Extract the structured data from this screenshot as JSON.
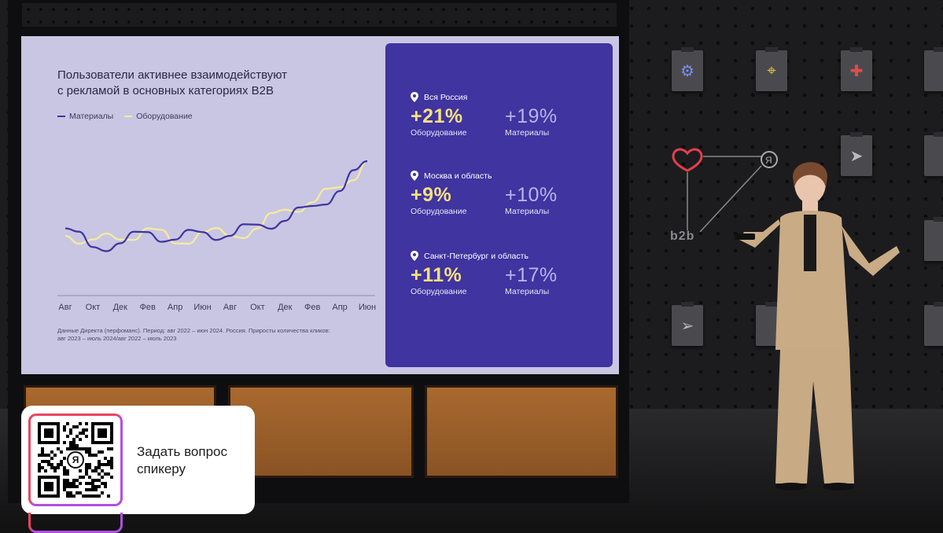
{
  "slide": {
    "title_line1": "Пользователи активнее взаимодействуют",
    "title_line2": "с рекламой в основных категориях В2В",
    "legend": [
      {
        "label": "Материалы",
        "color": "#3f34a0"
      },
      {
        "label": "Оборудование",
        "color": "#f6ec9a"
      }
    ],
    "footnote_line1": "Данные Директа (перфоманс). Период: авг 2022 – июн 2024. Россия. Приросты количества кликов:",
    "footnote_line2": "авг 2023 – июль 2024/авг 2022 – июль 2023"
  },
  "chart_data": {
    "type": "line",
    "x": [
      "Авг",
      "Окт",
      "Дек",
      "Фев",
      "Апр",
      "Июн",
      "Авг",
      "Окт",
      "Дек",
      "Фев",
      "Апр",
      "Июн"
    ],
    "series": [
      {
        "name": "Материалы",
        "color": "#3f34a0",
        "values": [
          48,
          43,
          44,
          47,
          45,
          47,
          46,
          49,
          50,
          54,
          58,
          66
        ]
      },
      {
        "name": "Оборудование",
        "color": "#f6ec9a",
        "values": [
          46,
          45,
          45,
          48,
          44,
          47,
          46,
          48,
          53,
          55,
          59,
          66
        ]
      }
    ],
    "ylim": [
      30,
      70
    ],
    "grid": false
  },
  "stats": [
    {
      "region": "Вся Россия",
      "equip_value": "+21%",
      "equip_label": "Оборудование",
      "mat_value": "+19%",
      "mat_label": "Материалы"
    },
    {
      "region": "Москва и область",
      "equip_value": "+9%",
      "equip_label": "Оборудование",
      "mat_value": "+10%",
      "mat_label": "Материалы"
    },
    {
      "region": "Санкт-Петербург и область",
      "equip_value": "+11%",
      "equip_label": "Оборудование",
      "mat_value": "+17%",
      "mat_label": "Материалы"
    }
  ],
  "qr": {
    "text_line1": "Задать вопрос",
    "text_line2": "спикеру",
    "logo_glyph": "Я"
  },
  "stage": {
    "sign": "b2b",
    "tile_icons": [
      "gear-icon",
      "location-pin-icon",
      "puzzle-icon",
      "cursor-icon",
      "heart-icon",
      "yandex-logo-icon",
      "send-icon"
    ]
  }
}
